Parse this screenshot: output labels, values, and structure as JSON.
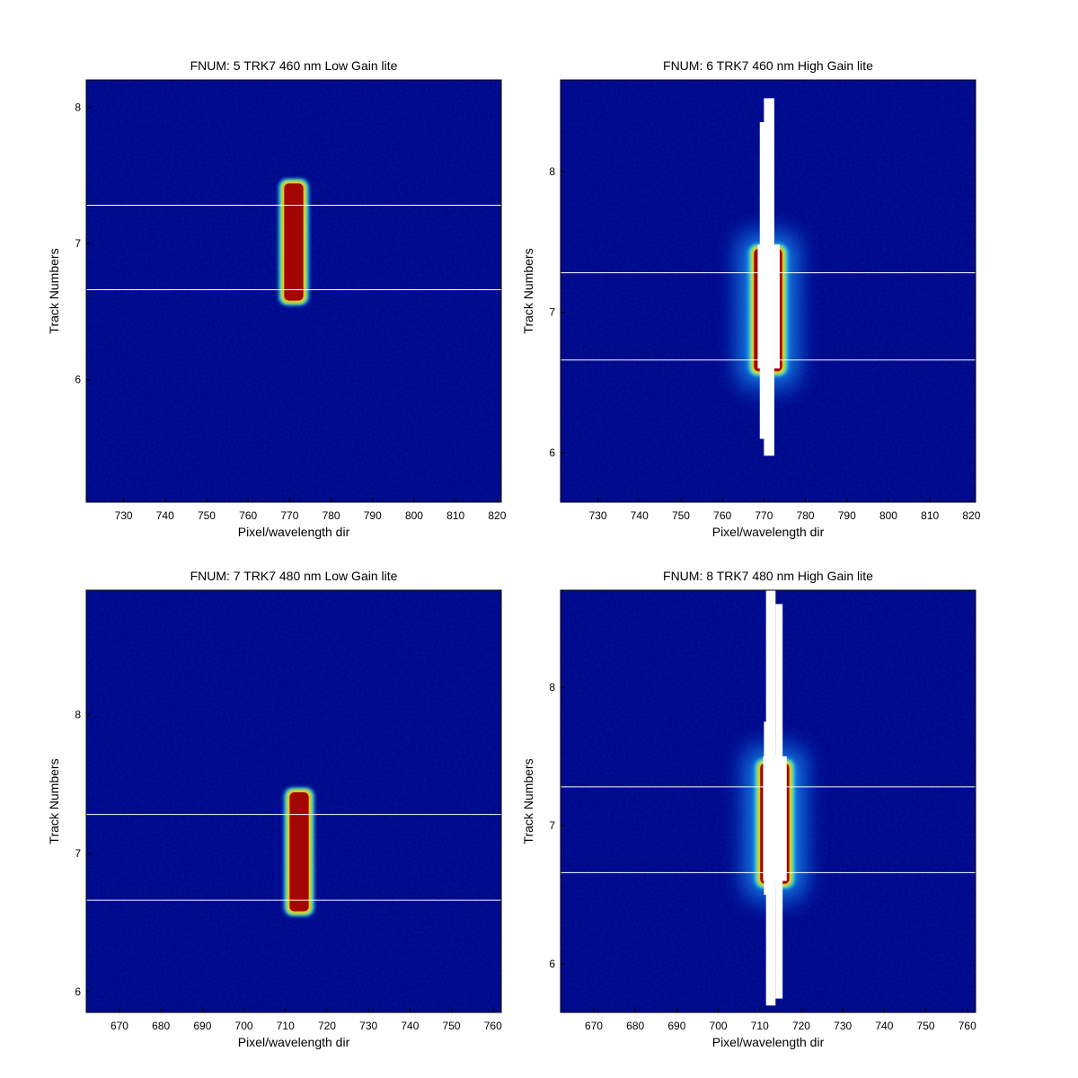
{
  "colors": {
    "background": "#00008f",
    "peak": "#a00000",
    "track_line": "#ffffff",
    "saturated": "#ffffff"
  },
  "colormap": "jet",
  "chart_data": [
    {
      "type": "heatmap",
      "title": "FNUM: 5 TRK7 460 nm Low Gain lite",
      "xlabel": "Pixel/wavelength dir",
      "ylabel": "Track Numbers",
      "xlim": [
        721,
        821
      ],
      "ylim": [
        5.1,
        8.2
      ],
      "xticks": [
        730,
        740,
        750,
        760,
        770,
        780,
        790,
        800,
        810,
        820
      ],
      "yticks": [
        6,
        7,
        8
      ],
      "track_lines": [
        7.28,
        6.66
      ],
      "spot": {
        "x_center": 771,
        "x_halfwidth": 2.3,
        "y_min": 6.58,
        "y_max": 7.44,
        "peak_level": 0.97,
        "halo": false
      },
      "saturated_region": []
    },
    {
      "type": "heatmap",
      "title": "FNUM: 6 TRK7 460 nm High Gain lite",
      "xlabel": "Pixel/wavelength dir",
      "ylabel": "Track Numbers",
      "xlim": [
        721,
        821
      ],
      "ylim": [
        5.65,
        8.65
      ],
      "xticks": [
        730,
        740,
        750,
        760,
        770,
        780,
        790,
        800,
        810,
        820
      ],
      "yticks": [
        6,
        7,
        8
      ],
      "track_lines": [
        7.28,
        6.66
      ],
      "spot": {
        "x_center": 771,
        "x_halfwidth": 3.4,
        "y_min": 6.58,
        "y_max": 7.45,
        "peak_level": 0.97,
        "halo": true
      },
      "saturated_region": [
        {
          "x": [
            770,
            772.5
          ],
          "y": [
            5.98,
            8.52
          ]
        },
        {
          "x": [
            768.5,
            773.8
          ],
          "y": [
            6.6,
            7.48
          ]
        },
        {
          "x": [
            769,
            771
          ],
          "y": [
            6.1,
            8.35
          ]
        }
      ]
    },
    {
      "type": "heatmap",
      "title": "FNUM: 7 TRK7 480 nm Low Gain lite",
      "xlabel": "Pixel/wavelength dir",
      "ylabel": "Track Numbers",
      "xlim": [
        662,
        762
      ],
      "ylim": [
        5.85,
        8.9
      ],
      "xticks": [
        670,
        680,
        690,
        700,
        710,
        720,
        730,
        740,
        750,
        760
      ],
      "yticks": [
        6,
        7,
        8
      ],
      "track_lines": [
        7.28,
        6.66
      ],
      "spot": {
        "x_center": 713.3,
        "x_halfwidth": 2.3,
        "y_min": 6.58,
        "y_max": 7.44,
        "peak_level": 0.97,
        "halo": false
      },
      "saturated_region": []
    },
    {
      "type": "heatmap",
      "title": "FNUM: 8 TRK7 480 nm High Gain lite",
      "xlabel": "Pixel/wavelength dir",
      "ylabel": "Track Numbers",
      "xlim": [
        662,
        762
      ],
      "ylim": [
        5.65,
        8.7
      ],
      "xticks": [
        670,
        680,
        690,
        700,
        710,
        720,
        730,
        740,
        750,
        760
      ],
      "yticks": [
        6,
        7,
        8
      ],
      "track_lines": [
        7.28,
        6.66
      ],
      "spot": {
        "x_center": 713.6,
        "x_halfwidth": 3.5,
        "y_min": 6.58,
        "y_max": 7.45,
        "peak_level": 0.97,
        "halo": true
      },
      "saturated_region": [
        {
          "x": [
            711.5,
            713.8
          ],
          "y": [
            5.7,
            8.7
          ]
        },
        {
          "x": [
            713.8,
            715.5
          ],
          "y": [
            5.75,
            8.6
          ]
        },
        {
          "x": [
            710.8,
            716.5
          ],
          "y": [
            6.6,
            7.5
          ]
        },
        {
          "x": [
            711,
            712
          ],
          "y": [
            6.5,
            7.75
          ]
        }
      ]
    }
  ]
}
